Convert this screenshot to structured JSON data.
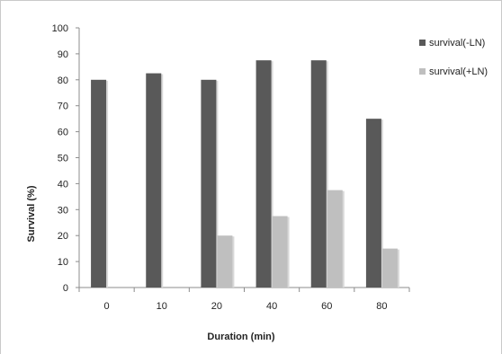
{
  "chart_data": {
    "type": "bar",
    "categories": [
      "0",
      "10",
      "20",
      "40",
      "60",
      "80"
    ],
    "series": [
      {
        "name": "survival(-LN)",
        "values": [
          80,
          82.5,
          80,
          87.5,
          87.5,
          65
        ],
        "color": "#595959"
      },
      {
        "name": "survival(+LN)",
        "values": [
          0,
          0,
          20,
          27.5,
          37.5,
          15
        ],
        "color": "#bfbfbf"
      }
    ],
    "title": "",
    "xlabel": "Duration (min)",
    "ylabel": "Survival (%)",
    "ylim": [
      0,
      100
    ],
    "yticks": [
      0,
      10,
      20,
      30,
      40,
      50,
      60,
      70,
      80,
      90,
      100
    ],
    "grid": false,
    "legend_position": "top-right"
  }
}
